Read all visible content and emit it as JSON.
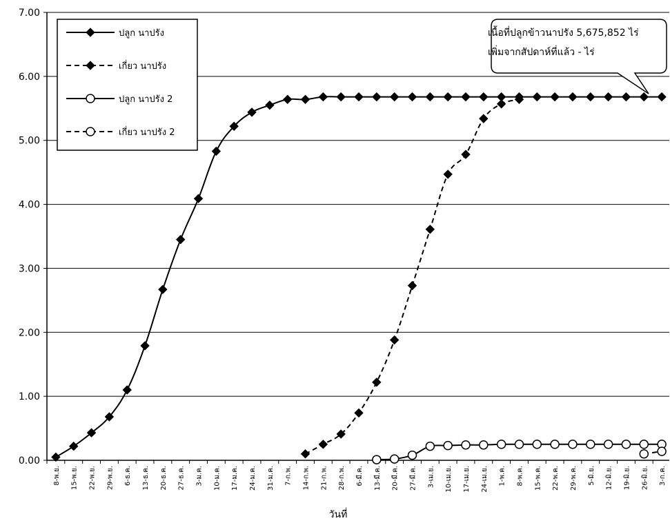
{
  "chart_data": {
    "type": "line",
    "xlabel": "วันที่",
    "ylabel": "",
    "ylim": [
      0,
      7
    ],
    "yticks": [
      "0.00",
      "1.00",
      "2.00",
      "3.00",
      "4.00",
      "5.00",
      "6.00",
      "7.00"
    ],
    "grid": "horizontal",
    "legend_position": "top-left",
    "categories": [
      "8-พ.ย.",
      "15-พ.ย.",
      "22-พ.ย.",
      "29-พ.ย.",
      "6-ธ.ค.",
      "13-ธ.ค.",
      "20-ธ.ค.",
      "27-ธ.ค.",
      "3-ม.ค.",
      "10-ม.ค.",
      "17-ม.ค.",
      "24-ม.ค.",
      "31-ม.ค.",
      "7-ก.พ.",
      "14-ก.พ.",
      "21-ก.พ.",
      "28-ก.พ.",
      "6-มี.ค.",
      "13-มี.ค.",
      "20-มี.ค.",
      "27-มี.ค.",
      "3-เม.ย.",
      "10-เม.ย.",
      "17-เม.ย.",
      "24-เม.ย.",
      "1-พ.ค.",
      "8-พ.ค.",
      "15-พ.ค.",
      "22-พ.ค.",
      "29-พ.ค.",
      "5-มิ.ย.",
      "12-มิ.ย.",
      "19-มิ.ย.",
      "26-มิ.ย.",
      "3-ก.ค."
    ],
    "series": [
      {
        "name": "ปลูก นาปรัง",
        "marker": "diamond",
        "dash": "solid",
        "values": [
          0.05,
          0.22,
          0.43,
          0.68,
          1.1,
          1.79,
          2.67,
          3.45,
          4.09,
          4.83,
          5.22,
          5.44,
          5.55,
          5.64,
          5.64,
          5.68,
          5.68,
          5.68,
          5.68,
          5.68,
          5.68,
          5.68,
          5.68,
          5.68,
          5.68,
          5.68,
          5.68,
          5.68,
          5.68,
          5.68,
          5.68,
          5.68,
          5.68,
          5.68,
          5.68
        ]
      },
      {
        "name": "เกี่ยว นาปรัง",
        "marker": "diamond",
        "dash": "dashed",
        "values": [
          null,
          null,
          null,
          null,
          null,
          null,
          null,
          null,
          null,
          null,
          null,
          null,
          null,
          null,
          0.1,
          0.25,
          0.41,
          0.74,
          1.22,
          1.88,
          2.73,
          3.61,
          4.47,
          4.78,
          5.34,
          5.57,
          5.64,
          null,
          null,
          null,
          null,
          null,
          null,
          null,
          null
        ]
      },
      {
        "name": "ปลูก นาปรัง 2",
        "marker": "circle",
        "dash": "solid",
        "values": [
          null,
          null,
          null,
          null,
          null,
          null,
          null,
          null,
          null,
          null,
          null,
          null,
          null,
          null,
          null,
          null,
          null,
          null,
          0.01,
          0.02,
          0.08,
          0.22,
          0.23,
          0.24,
          0.24,
          0.25,
          0.25,
          0.25,
          0.25,
          0.25,
          0.25,
          0.25,
          0.25,
          0.25,
          0.25
        ]
      },
      {
        "name": "เกี่ยว นาปรัง 2",
        "marker": "circle",
        "dash": "dashed",
        "values": [
          null,
          null,
          null,
          null,
          null,
          null,
          null,
          null,
          null,
          null,
          null,
          null,
          null,
          null,
          null,
          null,
          null,
          null,
          null,
          null,
          null,
          null,
          null,
          null,
          null,
          null,
          null,
          null,
          null,
          null,
          null,
          null,
          null,
          0.1,
          0.14
        ]
      }
    ],
    "callout": {
      "line1": "เนื้อที่ปลูกข้าวนาปรัง 5,675,852 ไร่",
      "line2": "เพิ่มจากสัปดาห์ที่แล้ว  -  ไร่"
    }
  }
}
